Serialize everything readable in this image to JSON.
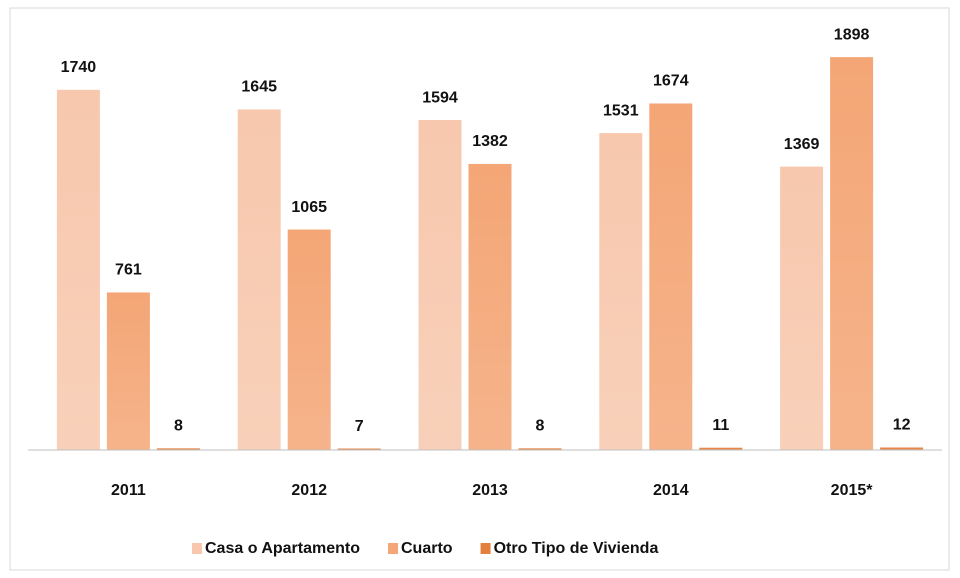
{
  "chart_data": {
    "type": "bar",
    "categories": [
      "2011",
      "2012",
      "2013",
      "2014",
      "2015*"
    ],
    "series": [
      {
        "name": "Casa o Apartamento",
        "color": "#f7c8ad",
        "values": [
          1740,
          1645,
          1594,
          1531,
          1369
        ]
      },
      {
        "name": "Cuarto",
        "color": "#f4a676",
        "values": [
          761,
          1065,
          1382,
          1674,
          1898
        ]
      },
      {
        "name": "Otro Tipo de Vivienda",
        "color": "#e47f3e",
        "values": [
          8,
          7,
          8,
          11,
          12
        ]
      }
    ],
    "ylim": [
      0,
      2000
    ]
  }
}
